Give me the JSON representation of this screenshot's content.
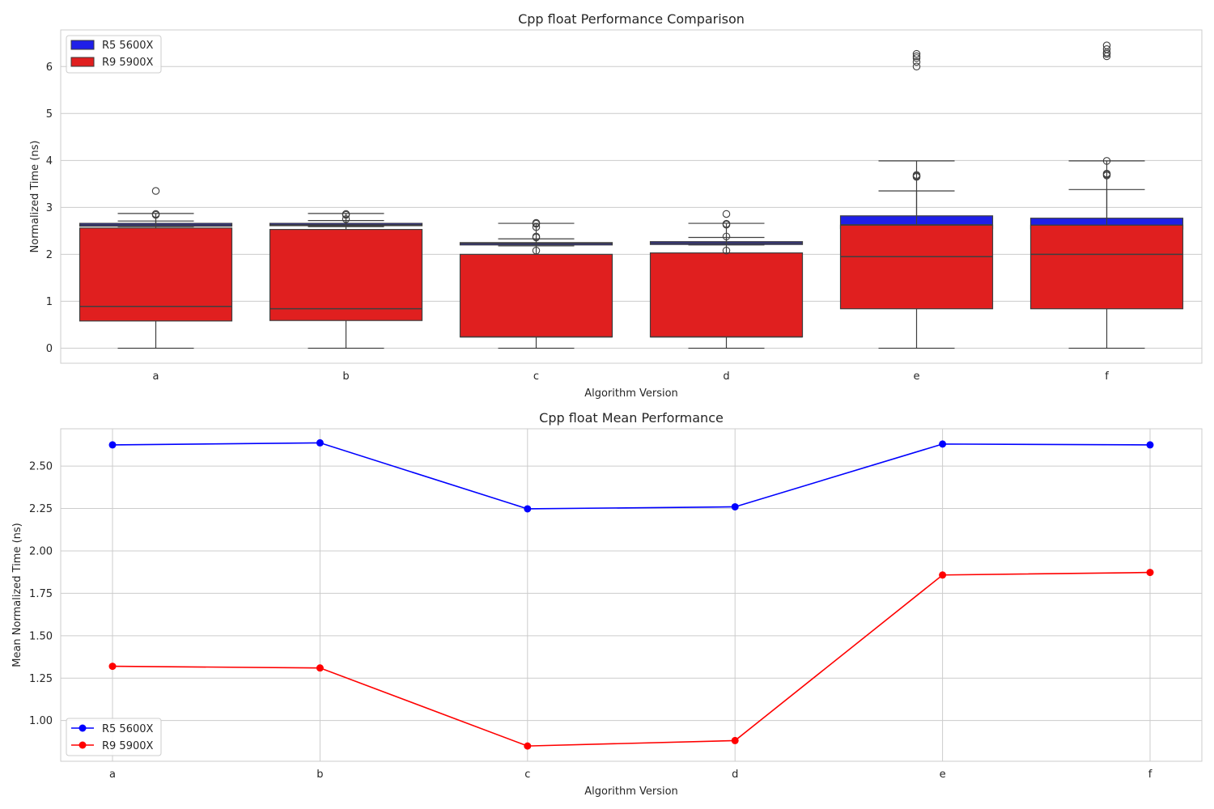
{
  "chart_data": [
    {
      "type": "box",
      "title": "Cpp float Performance Comparison",
      "xlabel": "Algorithm Version",
      "ylabel": "Normalized Time (ns)",
      "categories": [
        "a",
        "b",
        "c",
        "d",
        "e",
        "f"
      ],
      "ylim": [
        -0.32,
        6.78
      ],
      "yticks": [
        "0",
        "1",
        "2",
        "3",
        "4",
        "5",
        "6"
      ],
      "grid": true,
      "legend_position": "top-left",
      "series": [
        {
          "name": "R5 5600X",
          "color": "#1f1fe8",
          "boxes": [
            {
              "q1": 2.6,
              "median": 2.63,
              "q3": 2.66,
              "whisker_low": 2.59,
              "whisker_high": 2.71,
              "outliers": [
                2.84,
                2.86
              ]
            },
            {
              "q1": 2.61,
              "median": 2.63,
              "q3": 2.66,
              "whisker_low": 2.59,
              "whisker_high": 2.72,
              "outliers": [
                2.75,
                2.84,
                2.86
              ]
            },
            {
              "q1": 2.2,
              "median": 2.23,
              "q3": 2.25,
              "whisker_low": 2.18,
              "whisker_high": 2.33,
              "outliers": [
                2.36,
                2.38,
                2.58,
                2.65,
                2.67
              ]
            },
            {
              "q1": 2.21,
              "median": 2.24,
              "q3": 2.27,
              "whisker_low": 2.2,
              "whisker_high": 2.36,
              "outliers": [
                2.38,
                2.63,
                2.65
              ]
            },
            {
              "q1": 2.55,
              "median": 2.63,
              "q3": 2.82,
              "whisker_low": 2.46,
              "whisker_high": 3.35,
              "outliers": [
                3.65,
                3.67,
                3.69
              ]
            },
            {
              "q1": 2.54,
              "median": 2.62,
              "q3": 2.77,
              "whisker_low": 2.48,
              "whisker_high": 3.38,
              "outliers": [
                3.68,
                3.7,
                3.72
              ]
            }
          ]
        },
        {
          "name": "R9 5900X",
          "color": "#e01f1f",
          "boxes": [
            {
              "q1": 0.58,
              "median": 0.89,
              "q3": 2.56,
              "whisker_low": 0.0,
              "whisker_high": 2.87,
              "outliers": [
                3.35
              ]
            },
            {
              "q1": 0.59,
              "median": 0.84,
              "q3": 2.53,
              "whisker_low": 0.0,
              "whisker_high": 2.87,
              "outliers": []
            },
            {
              "q1": 0.24,
              "median": 0.24,
              "q3": 2.0,
              "whisker_low": 0.0,
              "whisker_high": 2.66,
              "outliers": [
                2.08
              ]
            },
            {
              "q1": 0.24,
              "median": 0.24,
              "q3": 2.03,
              "whisker_low": 0.0,
              "whisker_high": 2.66,
              "outliers": [
                2.08,
                2.86
              ]
            },
            {
              "q1": 0.84,
              "median": 1.95,
              "q3": 2.62,
              "whisker_low": 0.0,
              "whisker_high": 3.99,
              "outliers": [
                6.0,
                6.1,
                6.18,
                6.22,
                6.27
              ]
            },
            {
              "q1": 0.84,
              "median": 2.0,
              "q3": 2.62,
              "whisker_low": 0.0,
              "whisker_high": 3.99,
              "outliers": [
                3.99,
                6.22,
                6.27,
                6.3,
                6.37,
                6.45
              ]
            }
          ]
        }
      ]
    },
    {
      "type": "line",
      "title": "Cpp float Mean Performance",
      "xlabel": "Algorithm Version",
      "ylabel": "Mean Normalized Time (ns)",
      "categories": [
        "a",
        "b",
        "c",
        "d",
        "e",
        "f"
      ],
      "ylim": [
        0.76,
        2.72
      ],
      "yticks": [
        "1.00",
        "1.25",
        "1.50",
        "1.75",
        "2.00",
        "2.25",
        "2.50"
      ],
      "grid": true,
      "legend_position": "bottom-left",
      "series": [
        {
          "name": "R5 5600X",
          "color": "#0000ff",
          "values": [
            2.625,
            2.637,
            2.248,
            2.26,
            2.63,
            2.625
          ]
        },
        {
          "name": "R9 5900X",
          "color": "#ff0000",
          "values": [
            1.32,
            1.31,
            0.85,
            0.882,
            1.858,
            1.873
          ]
        }
      ]
    }
  ]
}
